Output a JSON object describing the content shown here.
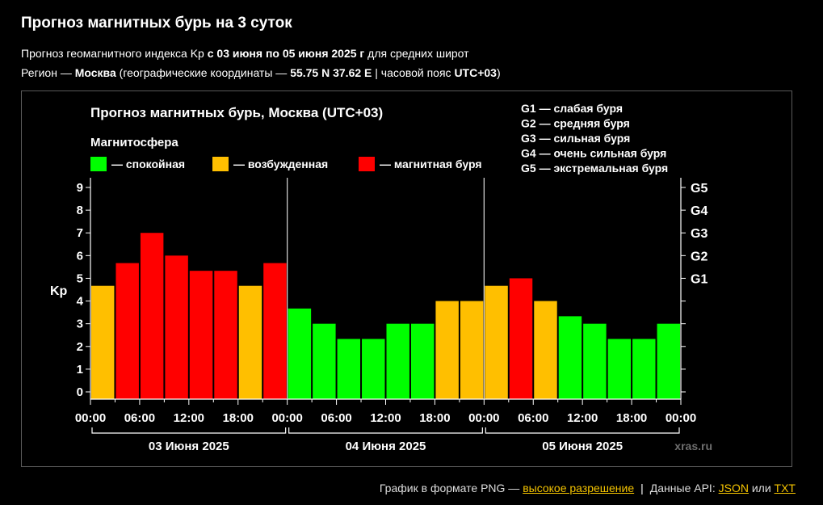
{
  "header": {
    "title": "Прогноз магнитных бурь на 3 суток",
    "line1": {
      "prefix": "Прогноз геомагнитного индекса Kp ",
      "period": "с 03 июня по 05 июня 2025 г",
      "suffix": " для средних широт"
    },
    "line2": {
      "prefix": "Регион — ",
      "city": "Москва",
      "mid": " (географические координаты — ",
      "coords": "55.75 N 37.62 E",
      "sep": " | часовой пояс ",
      "tz": "UTC+03",
      "end": ")"
    }
  },
  "colors": {
    "quiet": "#00ff00",
    "excited": "#ffbf00",
    "storm": "#ff0000",
    "background": "#000000",
    "frame": "#5a5a5a"
  },
  "chart_data": {
    "type": "bar",
    "title": "Прогноз магнитных бурь, Москва (UTC+03)",
    "legend_title": "Магнитосфера",
    "legend": [
      {
        "label": "— спокойная",
        "color": "#00ff00"
      },
      {
        "label": "— возбужденная",
        "color": "#ffbf00"
      },
      {
        "label": "— магнитная буря",
        "color": "#ff0000"
      }
    ],
    "storm_scale": [
      "G1 — слабая буря",
      "G2 — средняя буря",
      "G3 — сильная буря",
      "G4 — очень сильная буря",
      "G5 — экстремальная буря"
    ],
    "ylabel": "Kp",
    "ylim": [
      0,
      9
    ],
    "yticks": [
      "0",
      "1",
      "2",
      "3",
      "4",
      "5",
      "6",
      "7",
      "8",
      "9"
    ],
    "right_ticks": [
      {
        "label": "G1",
        "value": 5
      },
      {
        "label": "G2",
        "value": 6
      },
      {
        "label": "G3",
        "value": 7
      },
      {
        "label": "G4",
        "value": 8
      },
      {
        "label": "G5",
        "value": 9
      }
    ],
    "xticks": [
      "00:00",
      "06:00",
      "12:00",
      "18:00",
      "00:00",
      "06:00",
      "12:00",
      "18:00",
      "00:00",
      "06:00",
      "12:00",
      "18:00",
      "00:00"
    ],
    "days": [
      "03 Июня 2025",
      "04 Июня 2025",
      "05 Июня 2025"
    ],
    "interval_hours": 3,
    "values": [
      4.67,
      5.67,
      7.0,
      6.0,
      5.33,
      5.33,
      4.67,
      5.67,
      3.67,
      3.0,
      2.33,
      2.33,
      3.0,
      3.0,
      4.0,
      4.0,
      4.67,
      5.0,
      4.0,
      3.33,
      3.0,
      2.33,
      2.33,
      3.0
    ],
    "watermark": "xras.ru"
  },
  "footer": {
    "prefix": "График в формате PNG — ",
    "png_link": "высокое разрешение",
    "sep": "|",
    "api_text": "Данные API: ",
    "json_link": "JSON",
    "or": " или ",
    "txt_link": "TXT"
  }
}
